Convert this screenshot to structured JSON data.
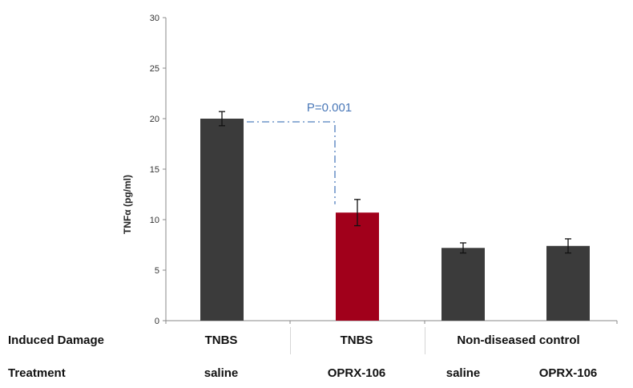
{
  "chart_data": {
    "type": "bar",
    "title": "",
    "ylabel": "TNFα (pg/ml)",
    "ylim": [
      0,
      30
    ],
    "yticks": [
      0,
      5,
      10,
      15,
      20,
      25,
      30
    ],
    "grid": false,
    "bars": [
      {
        "value": 20.0,
        "error": 0.7,
        "color": "#3b3b3b"
      },
      {
        "value": 10.7,
        "error": 1.3,
        "color": "#a1001b"
      },
      {
        "value": 7.2,
        "error": 0.5,
        "color": "#3b3b3b"
      },
      {
        "value": 7.4,
        "error": 0.7,
        "color": "#3b3b3b"
      }
    ],
    "annotation": {
      "text": "P=0.001",
      "from_bar": 0,
      "to_bar": 1,
      "color": "#4a78b8"
    }
  },
  "table": {
    "induced_damage_label": "Induced Damage",
    "treatment_label": "Treatment",
    "induced_damage": [
      "TNBS",
      "TNBS",
      "Non-diseased control"
    ],
    "treatment": [
      "saline",
      "OPRX-106",
      "saline",
      "OPRX-106"
    ]
  }
}
